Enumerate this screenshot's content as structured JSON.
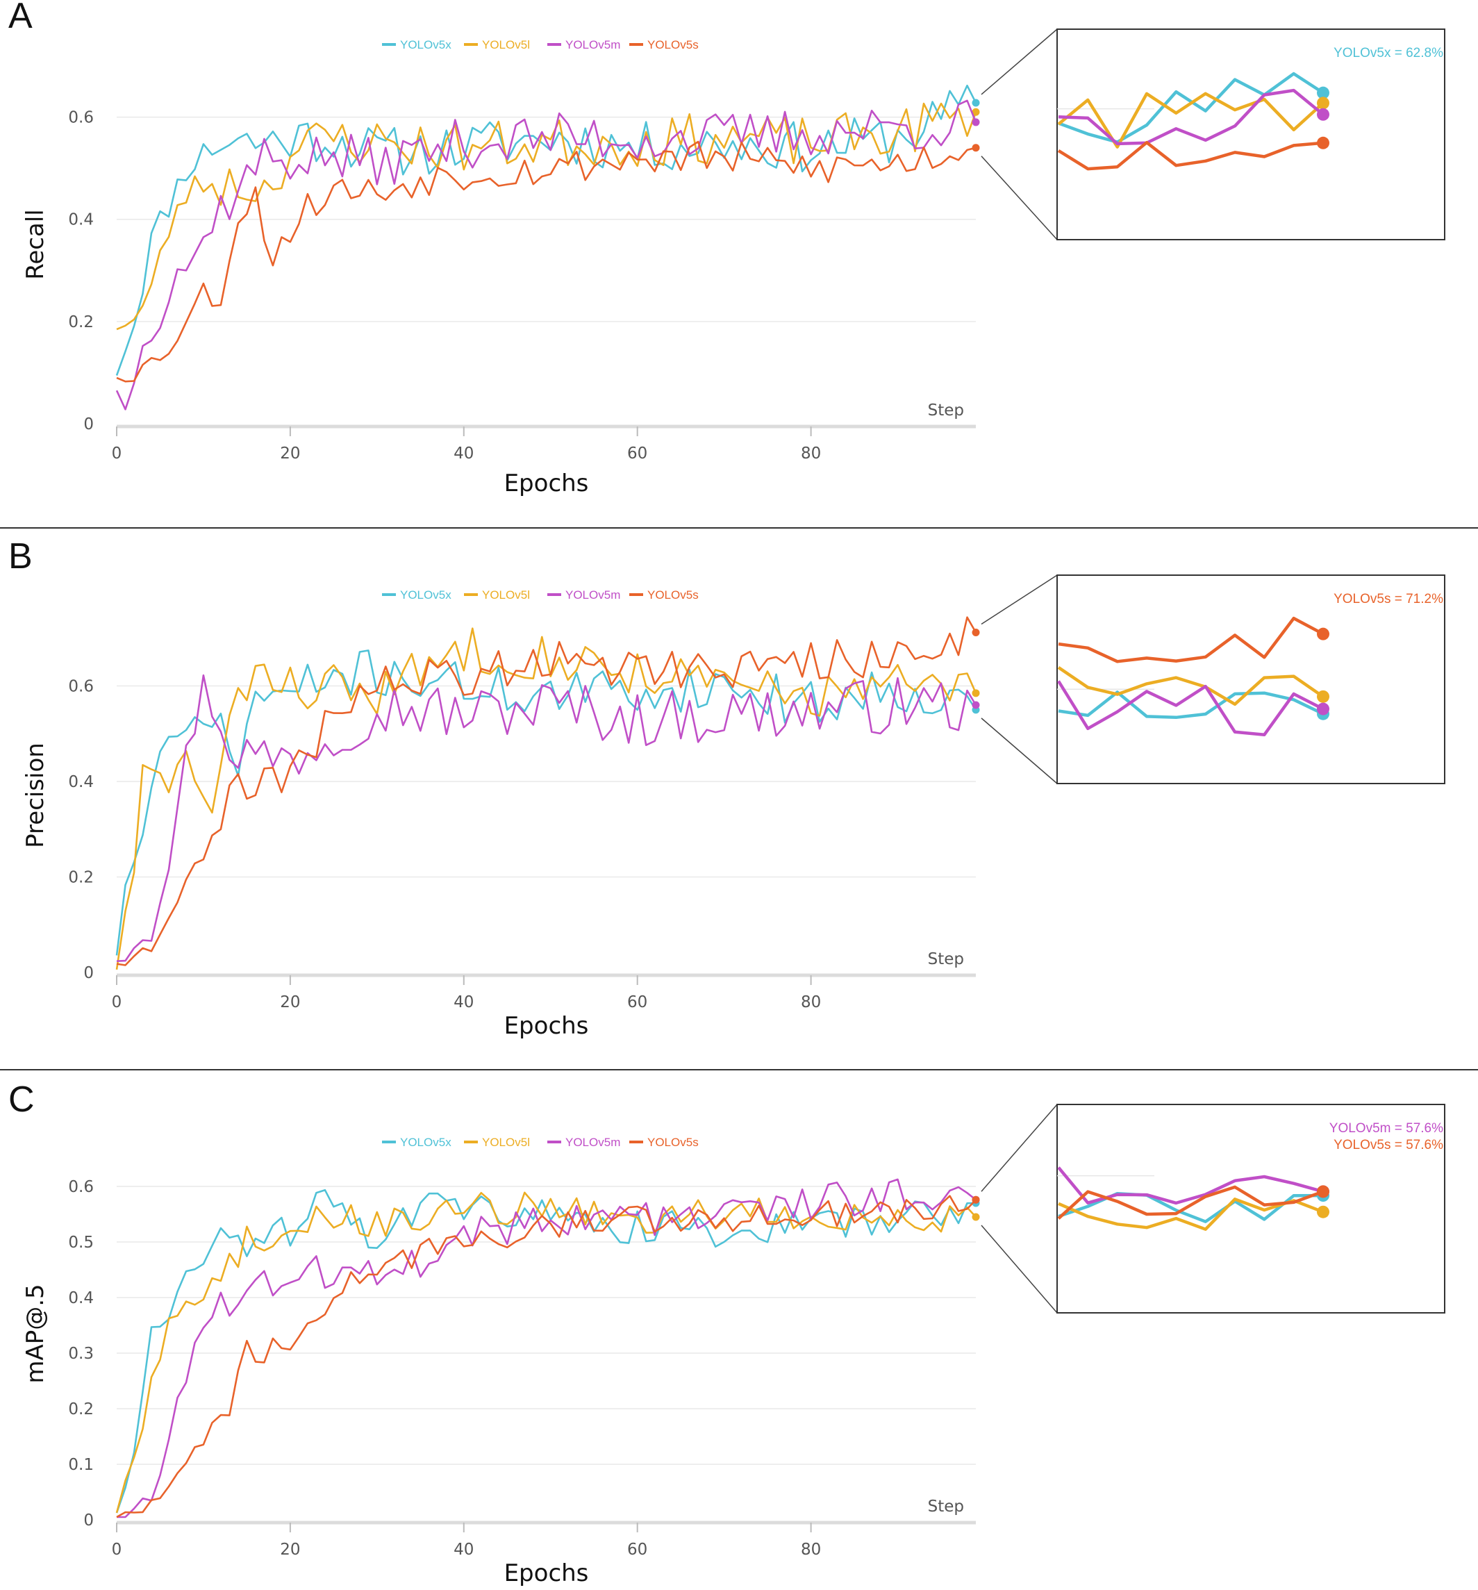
{
  "colors": {
    "YOLOv5x": "#4fc1d6",
    "YOLOv5l": "#ecad23",
    "YOLOv5m": "#c04fc7",
    "YOLOv5s": "#e8622a"
  },
  "chart_data": [
    {
      "type": "line",
      "panel": "A",
      "ylabel": "Recall",
      "xlabel": "Epochs",
      "step_label": "Step",
      "xlim": [
        0,
        99
      ],
      "ylim": [
        0,
        0.7
      ],
      "xticks": [
        "0",
        "20",
        "40",
        "60",
        "80"
      ],
      "yticks": [
        "0",
        "0.2",
        "0.4",
        "0.6"
      ],
      "ytick_values": [
        0,
        0.2,
        0.4,
        0.6
      ],
      "legend": [
        "YOLOv5x",
        "YOLOv5l",
        "YOLOv5m",
        "YOLOv5s"
      ],
      "final_values": {
        "YOLOv5x": 0.628,
        "YOLOv5l": 0.61,
        "YOLOv5m": 0.59,
        "YOLOv5s": 0.54
      },
      "annotation": {
        "text": "YOLOv5x = 62.8%",
        "series": "YOLOv5x"
      },
      "series": [
        {
          "name": "YOLOv5x",
          "anchors": [
            [
              0,
              0.11
            ],
            [
              2,
              0.2
            ],
            [
              4,
              0.36
            ],
            [
              6,
              0.43
            ],
            [
              8,
              0.5
            ],
            [
              10,
              0.53
            ],
            [
              13,
              0.56
            ],
            [
              16,
              0.55
            ],
            [
              20,
              0.56
            ],
            [
              25,
              0.56
            ],
            [
              30,
              0.53
            ],
            [
              40,
              0.54
            ],
            [
              50,
              0.56
            ],
            [
              60,
              0.54
            ],
            [
              70,
              0.55
            ],
            [
              80,
              0.54
            ],
            [
              90,
              0.56
            ],
            [
              99,
              0.628
            ]
          ],
          "amp": 0.05,
          "seed": 11
        },
        {
          "name": "YOLOv5l",
          "anchors": [
            [
              0,
              0.2
            ],
            [
              2,
              0.2
            ],
            [
              4,
              0.26
            ],
            [
              6,
              0.38
            ],
            [
              8,
              0.45
            ],
            [
              10,
              0.47
            ],
            [
              13,
              0.47
            ],
            [
              17,
              0.46
            ],
            [
              20,
              0.53
            ],
            [
              25,
              0.56
            ],
            [
              30,
              0.55
            ],
            [
              40,
              0.54
            ],
            [
              50,
              0.55
            ],
            [
              60,
              0.55
            ],
            [
              70,
              0.56
            ],
            [
              80,
              0.55
            ],
            [
              90,
              0.57
            ],
            [
              99,
              0.61
            ]
          ],
          "amp": 0.05,
          "seed": 23
        },
        {
          "name": "YOLOv5m",
          "anchors": [
            [
              0,
              0.08
            ],
            [
              1,
              0.02
            ],
            [
              3,
              0.18
            ],
            [
              5,
              0.2
            ],
            [
              7,
              0.3
            ],
            [
              9,
              0.32
            ],
            [
              11,
              0.4
            ],
            [
              14,
              0.46
            ],
            [
              17,
              0.52
            ],
            [
              20,
              0.52
            ],
            [
              25,
              0.52
            ],
            [
              30,
              0.51
            ],
            [
              40,
              0.55
            ],
            [
              50,
              0.56
            ],
            [
              60,
              0.56
            ],
            [
              70,
              0.56
            ],
            [
              80,
              0.57
            ],
            [
              90,
              0.58
            ],
            [
              99,
              0.59
            ]
          ],
          "amp": 0.05,
          "seed": 37
        },
        {
          "name": "YOLOv5s",
          "anchors": [
            [
              0,
              0.1
            ],
            [
              2,
              0.1
            ],
            [
              4,
              0.12
            ],
            [
              6,
              0.15
            ],
            [
              8,
              0.2
            ],
            [
              10,
              0.26
            ],
            [
              12,
              0.24
            ],
            [
              14,
              0.42
            ],
            [
              16,
              0.44
            ],
            [
              18,
              0.33
            ],
            [
              20,
              0.38
            ],
            [
              23,
              0.44
            ],
            [
              26,
              0.46
            ],
            [
              30,
              0.45
            ],
            [
              35,
              0.48
            ],
            [
              40,
              0.49
            ],
            [
              50,
              0.5
            ],
            [
              60,
              0.52
            ],
            [
              70,
              0.52
            ],
            [
              80,
              0.5
            ],
            [
              90,
              0.51
            ],
            [
              99,
              0.54
            ]
          ],
          "amp": 0.035,
          "seed": 53
        }
      ]
    },
    {
      "type": "line",
      "panel": "B",
      "ylabel": "Precision",
      "xlabel": "Epochs",
      "step_label": "Step",
      "xlim": [
        0,
        99
      ],
      "ylim": [
        0,
        0.8
      ],
      "xticks": [
        "0",
        "20",
        "40",
        "60",
        "80"
      ],
      "yticks": [
        "0",
        "0.2",
        "0.4",
        "0.6"
      ],
      "ytick_values": [
        0,
        0.2,
        0.4,
        0.6
      ],
      "legend": [
        "YOLOv5x",
        "YOLOv5l",
        "YOLOv5m",
        "YOLOv5s"
      ],
      "final_values": {
        "YOLOv5x": 0.55,
        "YOLOv5l": 0.585,
        "YOLOv5m": 0.56,
        "YOLOv5s": 0.712
      },
      "annotation": {
        "text": "YOLOv5s = 71.2%",
        "series": "YOLOv5s"
      },
      "series": [
        {
          "name": "YOLOv5x",
          "anchors": [
            [
              0,
              0.05
            ],
            [
              1,
              0.17
            ],
            [
              3,
              0.3
            ],
            [
              5,
              0.45
            ],
            [
              8,
              0.5
            ],
            [
              10,
              0.55
            ],
            [
              14,
              0.44
            ],
            [
              16,
              0.58
            ],
            [
              20,
              0.58
            ],
            [
              25,
              0.62
            ],
            [
              30,
              0.63
            ],
            [
              40,
              0.6
            ],
            [
              50,
              0.58
            ],
            [
              60,
              0.59
            ],
            [
              70,
              0.6
            ],
            [
              80,
              0.56
            ],
            [
              90,
              0.6
            ],
            [
              99,
              0.55
            ]
          ],
          "amp": 0.05,
          "seed": 71
        },
        {
          "name": "YOLOv5l",
          "anchors": [
            [
              0,
              0.02
            ],
            [
              2,
              0.2
            ],
            [
              3,
              0.42
            ],
            [
              6,
              0.4
            ],
            [
              8,
              0.45
            ],
            [
              11,
              0.33
            ],
            [
              13,
              0.5
            ],
            [
              16,
              0.65
            ],
            [
              20,
              0.6
            ],
            [
              25,
              0.6
            ],
            [
              30,
              0.58
            ],
            [
              40,
              0.68
            ],
            [
              50,
              0.66
            ],
            [
              60,
              0.63
            ],
            [
              70,
              0.6
            ],
            [
              80,
              0.58
            ],
            [
              90,
              0.6
            ],
            [
              99,
              0.585
            ]
          ],
          "amp": 0.05,
          "seed": 83
        },
        {
          "name": "YOLOv5m",
          "anchors": [
            [
              0,
              0.04
            ],
            [
              2,
              0.07
            ],
            [
              4,
              0.1
            ],
            [
              6,
              0.24
            ],
            [
              8,
              0.45
            ],
            [
              10,
              0.6
            ],
            [
              13,
              0.48
            ],
            [
              16,
              0.45
            ],
            [
              20,
              0.45
            ],
            [
              25,
              0.5
            ],
            [
              30,
              0.56
            ],
            [
              40,
              0.54
            ],
            [
              50,
              0.56
            ],
            [
              60,
              0.53
            ],
            [
              70,
              0.54
            ],
            [
              80,
              0.55
            ],
            [
              90,
              0.56
            ],
            [
              99,
              0.56
            ]
          ],
          "amp": 0.06,
          "seed": 97
        },
        {
          "name": "YOLOv5s",
          "anchors": [
            [
              0,
              0.03
            ],
            [
              3,
              0.04
            ],
            [
              5,
              0.1
            ],
            [
              8,
              0.17
            ],
            [
              10,
              0.25
            ],
            [
              13,
              0.38
            ],
            [
              16,
              0.38
            ],
            [
              20,
              0.4
            ],
            [
              25,
              0.55
            ],
            [
              30,
              0.6
            ],
            [
              40,
              0.62
            ],
            [
              50,
              0.66
            ],
            [
              60,
              0.64
            ],
            [
              70,
              0.64
            ],
            [
              80,
              0.65
            ],
            [
              90,
              0.66
            ],
            [
              99,
              0.712
            ]
          ],
          "amp": 0.045,
          "seed": 109
        }
      ]
    },
    {
      "type": "line",
      "panel": "C",
      "ylabel": "mAP@.5",
      "xlabel": "Epochs",
      "step_label": "Step",
      "xlim": [
        0,
        99
      ],
      "ylim": [
        0,
        0.66
      ],
      "xticks": [
        "0",
        "20",
        "40",
        "60",
        "80"
      ],
      "yticks": [
        "0",
        "0.1",
        "0.2",
        "0.3",
        "0.4",
        "0.5",
        "0.6"
      ],
      "ytick_values": [
        0,
        0.1,
        0.2,
        0.3,
        0.4,
        0.5,
        0.6
      ],
      "legend": [
        "YOLOv5x",
        "YOLOv5l",
        "YOLOv5m",
        "YOLOv5s"
      ],
      "final_values": {
        "YOLOv5x": 0.57,
        "YOLOv5l": 0.545,
        "YOLOv5m": 0.576,
        "YOLOv5s": 0.576
      },
      "annotations": [
        {
          "text": "YOLOv5m = 57.6%",
          "series": "YOLOv5m"
        },
        {
          "text": "YOLOv5s = 57.6%",
          "series": "YOLOv5s"
        }
      ],
      "series": [
        {
          "name": "YOLOv5x",
          "anchors": [
            [
              0,
              0.02
            ],
            [
              2,
              0.12
            ],
            [
              4,
              0.34
            ],
            [
              6,
              0.35
            ],
            [
              8,
              0.46
            ],
            [
              10,
              0.47
            ],
            [
              12,
              0.52
            ],
            [
              15,
              0.47
            ],
            [
              18,
              0.53
            ],
            [
              20,
              0.52
            ],
            [
              24,
              0.6
            ],
            [
              28,
              0.54
            ],
            [
              30,
              0.5
            ],
            [
              35,
              0.57
            ],
            [
              40,
              0.56
            ],
            [
              50,
              0.55
            ],
            [
              55,
              0.52
            ],
            [
              60,
              0.53
            ],
            [
              70,
              0.52
            ],
            [
              80,
              0.53
            ],
            [
              90,
              0.54
            ],
            [
              99,
              0.57
            ]
          ],
          "amp": 0.03,
          "seed": 131
        },
        {
          "name": "YOLOv5l",
          "anchors": [
            [
              0,
              0.02
            ],
            [
              2,
              0.1
            ],
            [
              4,
              0.25
            ],
            [
              6,
              0.36
            ],
            [
              8,
              0.4
            ],
            [
              10,
              0.4
            ],
            [
              12,
              0.45
            ],
            [
              15,
              0.5
            ],
            [
              18,
              0.47
            ],
            [
              20,
              0.52
            ],
            [
              25,
              0.55
            ],
            [
              30,
              0.53
            ],
            [
              40,
              0.56
            ],
            [
              50,
              0.56
            ],
            [
              60,
              0.54
            ],
            [
              70,
              0.55
            ],
            [
              80,
              0.55
            ],
            [
              90,
              0.54
            ],
            [
              99,
              0.545
            ]
          ],
          "amp": 0.03,
          "seed": 149
        },
        {
          "name": "YOLOv5m",
          "anchors": [
            [
              0,
              0.01
            ],
            [
              3,
              0.03
            ],
            [
              5,
              0.08
            ],
            [
              7,
              0.2
            ],
            [
              9,
              0.3
            ],
            [
              11,
              0.37
            ],
            [
              13,
              0.4
            ],
            [
              16,
              0.42
            ],
            [
              20,
              0.45
            ],
            [
              25,
              0.44
            ],
            [
              30,
              0.45
            ],
            [
              35,
              0.47
            ],
            [
              40,
              0.52
            ],
            [
              50,
              0.54
            ],
            [
              60,
              0.54
            ],
            [
              70,
              0.55
            ],
            [
              80,
              0.57
            ],
            [
              90,
              0.59
            ],
            [
              99,
              0.576
            ]
          ],
          "amp": 0.035,
          "seed": 163
        },
        {
          "name": "YOLOv5s",
          "anchors": [
            [
              0,
              0.01
            ],
            [
              3,
              0.02
            ],
            [
              5,
              0.04
            ],
            [
              7,
              0.08
            ],
            [
              9,
              0.12
            ],
            [
              11,
              0.18
            ],
            [
              13,
              0.2
            ],
            [
              15,
              0.3
            ],
            [
              18,
              0.31
            ],
            [
              20,
              0.32
            ],
            [
              23,
              0.38
            ],
            [
              26,
              0.42
            ],
            [
              30,
              0.44
            ],
            [
              35,
              0.48
            ],
            [
              40,
              0.5
            ],
            [
              50,
              0.53
            ],
            [
              60,
              0.54
            ],
            [
              70,
              0.54
            ],
            [
              80,
              0.55
            ],
            [
              90,
              0.56
            ],
            [
              99,
              0.576
            ]
          ],
          "amp": 0.025,
          "seed": 179
        }
      ]
    }
  ]
}
